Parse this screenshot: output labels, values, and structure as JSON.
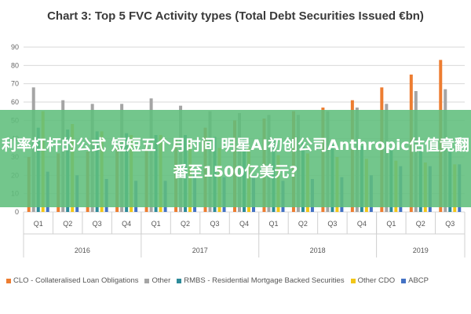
{
  "title": "Chart 3: Top 5 FVC Activity types (Total Debt Securities Issued €bn)",
  "overlay_text": "利率杠杆的公式 短短五个月时间 明星AI初创公司Anthropic估值竟翻番至1500亿美元?",
  "chart_data": {
    "type": "bar",
    "categories": [
      "Q1",
      "Q2",
      "Q3",
      "Q4",
      "Q1",
      "Q2",
      "Q3",
      "Q4",
      "Q1",
      "Q2",
      "Q3",
      "Q4",
      "Q1",
      "Q2",
      "Q3"
    ],
    "year_groups": [
      {
        "label": "2016",
        "count": 4
      },
      {
        "label": "2017",
        "count": 4
      },
      {
        "label": "2018",
        "count": 4
      },
      {
        "label": "2019",
        "count": 3
      }
    ],
    "ylim": [
      0,
      90
    ],
    "yticks": [
      0,
      10,
      20,
      30,
      40,
      50,
      60,
      70,
      80,
      90
    ],
    "grid": true,
    "legend_position": "bottom",
    "series": [
      {
        "name": "CLO - Collateralised Loan Obligations",
        "color": "#ED7D31",
        "values": [
          30,
          32,
          33,
          35,
          38,
          40,
          46,
          50,
          51,
          55,
          57,
          61,
          68,
          75,
          83
        ]
      },
      {
        "name": "Other",
        "color": "#A5A5A5",
        "values": [
          68,
          61,
          59,
          59,
          62,
          58,
          55,
          54,
          53,
          53,
          55,
          57,
          59,
          66,
          67
        ]
      },
      {
        "name": "RMBS - Residential Mortgage Backed Securities",
        "color": "#2E8B9A",
        "values": [
          46,
          45,
          44,
          43,
          42,
          42,
          41,
          40,
          39,
          38,
          37,
          36,
          35,
          34,
          33
        ]
      },
      {
        "name": "Other CDO",
        "color": "#F2C618",
        "values": [
          55,
          48,
          44,
          42,
          42,
          40,
          35,
          35,
          31,
          32,
          30,
          29,
          28,
          27,
          26
        ]
      },
      {
        "name": "ABCP",
        "color": "#4472C4",
        "values": [
          22,
          20,
          18,
          17,
          17,
          21,
          19,
          20,
          17,
          18,
          19,
          20,
          25,
          25,
          26
        ]
      }
    ]
  }
}
